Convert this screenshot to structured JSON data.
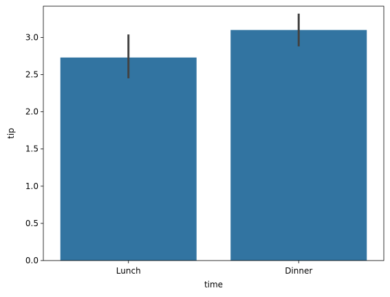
{
  "chart_data": {
    "type": "bar",
    "categories": [
      "Lunch",
      "Dinner"
    ],
    "values": [
      2.73,
      3.1
    ],
    "error_bars": [
      {
        "low": 2.45,
        "high": 3.04
      },
      {
        "low": 2.88,
        "high": 3.32
      }
    ],
    "xlabel": "time",
    "ylabel": "tip",
    "ylim": [
      0,
      3.42
    ],
    "yticks": [
      0.0,
      0.5,
      1.0,
      1.5,
      2.0,
      2.5,
      3.0
    ],
    "ytick_labels": [
      "0.0",
      "0.5",
      "1.0",
      "1.5",
      "2.0",
      "2.5",
      "3.0"
    ],
    "grid": false,
    "colors": {
      "bar": "#3274a1",
      "error_bar": "#424242",
      "axis": "#000000"
    }
  }
}
